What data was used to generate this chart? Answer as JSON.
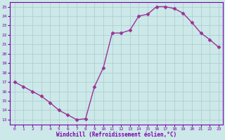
{
  "hours": [
    0,
    1,
    2,
    3,
    4,
    5,
    6,
    7,
    8,
    9,
    10,
    11,
    12,
    13,
    14,
    15,
    16,
    17,
    18,
    19,
    20,
    21,
    22,
    23
  ],
  "values": [
    17.0,
    16.5,
    16.0,
    15.5,
    14.8,
    14.0,
    13.5,
    13.0,
    13.1,
    16.5,
    18.5,
    22.2,
    22.2,
    22.5,
    24.0,
    24.2,
    25.0,
    25.0,
    24.8,
    24.3,
    23.3,
    22.2,
    21.5,
    20.7
  ],
  "line_color": "#993399",
  "marker": "D",
  "marker_size": 2.5,
  "bg_color": "#cce8e8",
  "grid_color": "#aacccc",
  "xlabel": "Windchill (Refroidissement éolien,°C)",
  "xlabel_color": "#7700aa",
  "tick_color": "#7700aa",
  "ylim": [
    12.5,
    25.5
  ],
  "yticks": [
    13,
    14,
    15,
    16,
    17,
    18,
    19,
    20,
    21,
    22,
    23,
    24,
    25
  ],
  "spine_color": "#7700aa",
  "lw": 1.0
}
